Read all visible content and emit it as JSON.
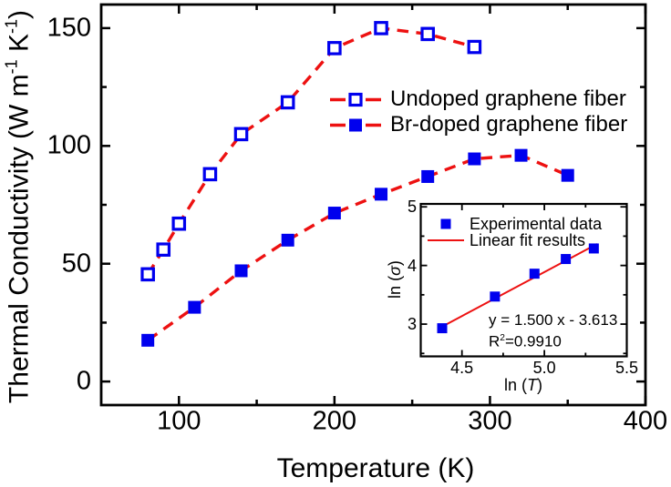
{
  "figure": {
    "background": "#ffffff",
    "colors": {
      "marker_blue": "#0000EE",
      "line_red": "#ED1111",
      "axis_black": "#000000",
      "open_marker_fill": "#ffffff"
    }
  },
  "chart_data": [
    {
      "id": "main",
      "type": "line",
      "title": "",
      "xlabel": "Temperature (K)",
      "ylabel": "Thermal Conductivity (W m⁻¹ K⁻¹)",
      "ylabel_parts": [
        {
          "t": "Thermal Conductivity (W m"
        },
        {
          "t": "-1",
          "sup": true
        },
        {
          "t": " K"
        },
        {
          "t": "-1",
          "sup": true
        },
        {
          "t": ")"
        }
      ],
      "xlim": [
        50,
        400
      ],
      "ylim": [
        -10,
        160
      ],
      "x_major_ticks": [
        100,
        200,
        300,
        400
      ],
      "x_tick_labels": [
        "100",
        "200",
        "300",
        "400"
      ],
      "x_minor_ticks": [
        150,
        250,
        350
      ],
      "y_major_ticks": [
        0,
        50,
        100,
        150
      ],
      "y_tick_labels": [
        "0",
        "50",
        "100",
        "150"
      ],
      "y_minor_ticks": [
        25,
        75,
        125
      ],
      "grid": false,
      "legend_position": "upper-right-inside",
      "line_style": "dashed",
      "series": [
        {
          "name": "Undoped graphene fiber",
          "marker": "open-square",
          "x": [
            80,
            90,
            100,
            120,
            140,
            170,
            200,
            230,
            260,
            290
          ],
          "y": [
            45.5,
            56,
            67,
            88,
            105,
            118.5,
            141.5,
            150,
            147.5,
            142
          ]
        },
        {
          "name": "Br-doped graphene fiber",
          "marker": "filled-square",
          "x": [
            80,
            110,
            140,
            170,
            200,
            230,
            260,
            290,
            320,
            350
          ],
          "y": [
            17.5,
            31.5,
            47,
            60,
            71.5,
            79.5,
            87,
            94.5,
            96,
            87.5
          ]
        }
      ]
    },
    {
      "id": "inset",
      "type": "scatter",
      "title": "",
      "xlabel": "ln (T)",
      "xlabel_parts": [
        {
          "t": "ln ("
        },
        {
          "t": "T",
          "italic": true
        },
        {
          "t": ")"
        }
      ],
      "ylabel": "ln (σ)",
      "ylabel_parts": [
        {
          "t": "ln ("
        },
        {
          "t": "σ",
          "italic": true
        },
        {
          "t": ")"
        }
      ],
      "xlim": [
        4.25,
        5.5
      ],
      "ylim": [
        2.45,
        5.05
      ],
      "x_major_ticks": [
        4.5,
        5.0,
        5.5
      ],
      "x_tick_labels": [
        "4.5",
        "5.0",
        "5.5"
      ],
      "x_minor_ticks": [
        4.75,
        5.25
      ],
      "y_major_ticks": [
        3,
        4,
        5
      ],
      "y_tick_labels": [
        "3",
        "4",
        "5"
      ],
      "y_minor_ticks": [
        2.5,
        3.5,
        4.5
      ],
      "grid": false,
      "legend_position": "upper-left-inside",
      "series": [
        {
          "name": "Experimental data",
          "marker": "filled-square",
          "x": [
            4.38,
            4.7,
            4.94,
            5.13,
            5.3
          ],
          "y": [
            2.93,
            3.47,
            3.86,
            4.11,
            4.29
          ]
        }
      ],
      "fit": {
        "name": "Linear fit results",
        "slope": 1.5,
        "intercept": -3.613,
        "x_start": 4.4,
        "x_end": 5.32
      },
      "annotation": {
        "equation": "y = 1.500 x - 3.613",
        "r_squared_text": "R²=0.9910",
        "r_squared_parts": [
          {
            "t": "R"
          },
          {
            "t": "2",
            "sup": true
          },
          {
            "t": "=0.9910"
          }
        ]
      }
    }
  ]
}
